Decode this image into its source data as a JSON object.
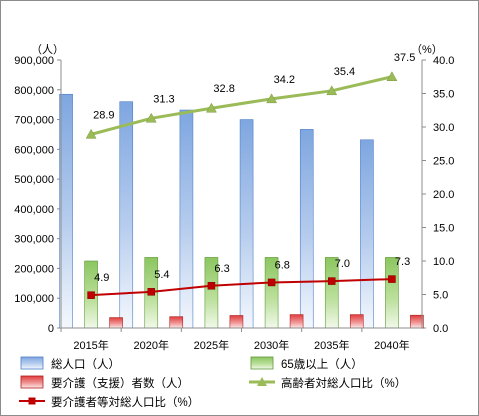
{
  "chart_data": {
    "type": "bar",
    "categories": [
      "2015年",
      "2020年",
      "2025年",
      "2030年",
      "2035年",
      "2040年"
    ],
    "left_axis": {
      "unit": "（人）",
      "range": [
        0,
        900000
      ],
      "ticks": [
        "0",
        "100,000",
        "200,000",
        "300,000",
        "400,000",
        "500,000",
        "600,000",
        "700,000",
        "800,000",
        "900,000"
      ]
    },
    "right_axis": {
      "unit": "（%）",
      "range": [
        0,
        40
      ],
      "ticks": [
        "0.0",
        "5.0",
        "10.0",
        "15.0",
        "20.0",
        "25.0",
        "30.0",
        "35.0",
        "40.0"
      ]
    },
    "grid": false,
    "legend_position": "bottom",
    "series": [
      {
        "name": "総人口（人）",
        "kind": "bar",
        "axis": "left",
        "color": "#7ea6e0",
        "values": [
          785000,
          760000,
          732000,
          700000,
          667000,
          632000
        ]
      },
      {
        "name": "65歳以上（人）",
        "kind": "bar",
        "axis": "left",
        "color": "#8cc660",
        "values": [
          225000,
          237000,
          237000,
          237000,
          237000,
          237000
        ]
      },
      {
        "name": "要介護（支援）者数（人）",
        "kind": "bar",
        "axis": "left",
        "color": "#e03c3c",
        "values": [
          35000,
          38000,
          42000,
          45000,
          45000,
          43000
        ]
      },
      {
        "name": "高齢者対総人口比（%）",
        "kind": "line",
        "axis": "right",
        "color": "#9bbb59",
        "values": [
          28.9,
          31.3,
          32.8,
          34.2,
          35.4,
          37.5
        ],
        "labels": [
          "28.9",
          "31.3",
          "32.8",
          "34.2",
          "35.4",
          "37.5"
        ]
      },
      {
        "name": "要介護者等対総人口比（%）",
        "kind": "line",
        "axis": "right",
        "color": "#c00000",
        "values": [
          4.9,
          5.4,
          6.3,
          6.8,
          7.0,
          7.3
        ],
        "labels": [
          "4.9",
          "5.4",
          "6.3",
          "6.8",
          "7.0",
          "7.3"
        ]
      }
    ]
  }
}
